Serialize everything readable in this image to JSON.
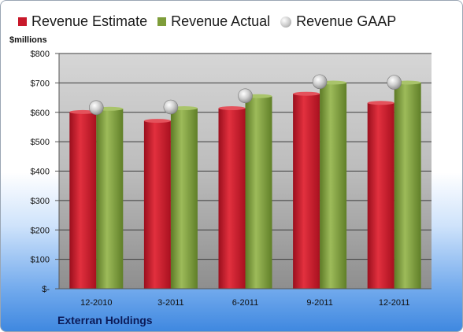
{
  "legend": [
    {
      "label": "Revenue Estimate",
      "color": "#c8182a",
      "shape": "square"
    },
    {
      "label": "Revenue Actual",
      "color": "#7e9d3a",
      "shape": "square"
    },
    {
      "label": "Revenue GAAP",
      "color": "#b9b9b9",
      "shape": "circle"
    }
  ],
  "yunit": "$millions",
  "company": "Exterran Holdings",
  "chart_data": {
    "type": "bar",
    "categories": [
      "12-2010",
      "3-2011",
      "6-2011",
      "9-2011",
      "12-2011"
    ],
    "series": [
      {
        "name": "Revenue Estimate",
        "type": "bar",
        "color": "#c8182a",
        "values": [
          601,
          571,
          614,
          663,
          632
        ]
      },
      {
        "name": "Revenue Actual",
        "type": "bar",
        "color": "#7e9d3a",
        "values": [
          612,
          614,
          655,
          701,
          701
        ]
      },
      {
        "name": "Revenue GAAP",
        "type": "marker",
        "color": "#b9b9b9",
        "values": [
          616,
          618,
          656,
          704,
          702
        ]
      }
    ],
    "ylim": [
      0,
      800
    ],
    "yticks": [
      0,
      100,
      200,
      300,
      400,
      500,
      600,
      700,
      800
    ],
    "ytick_labels": [
      "$-",
      "$100",
      "$200",
      "$300",
      "$400",
      "$500",
      "$600",
      "$700",
      "$800"
    ],
    "grid": true,
    "legend_position": "top"
  }
}
